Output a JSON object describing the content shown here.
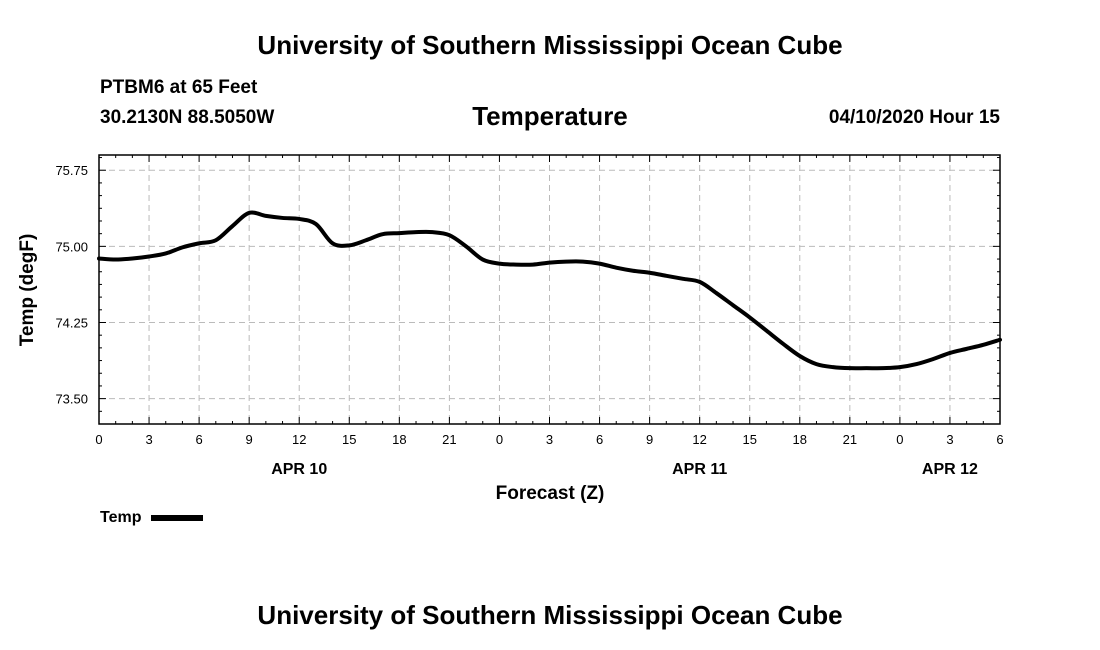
{
  "header": {
    "title_top": "University of Southern Mississippi Ocean Cube",
    "title_bottom": "University of Southern Mississippi Ocean Cube",
    "station": "PTBM6 at 65 Feet",
    "coords": "30.2130N 88.5050W",
    "datetime": "04/10/2020 Hour 15"
  },
  "legend": {
    "label": "Temp"
  },
  "colors": {
    "line": "#000000",
    "grid": "#bbbbbb",
    "background": "#ffffff"
  },
  "chart_data": {
    "type": "line",
    "title": "Temperature",
    "xlabel": "Forecast (Z)",
    "ylabel": "Temp (degF)",
    "ylim": [
      73.25,
      75.9
    ],
    "xlim": [
      0,
      54
    ],
    "yticks": [
      73.5,
      74.25,
      75.0,
      75.75
    ],
    "ytick_labels": [
      "73.50",
      "74.25",
      "75.00",
      "75.75"
    ],
    "xticks": [
      0,
      3,
      6,
      9,
      12,
      15,
      18,
      21,
      24,
      27,
      30,
      33,
      36,
      39,
      42,
      45,
      48,
      51,
      54
    ],
    "xtick_labels": [
      "0",
      "3",
      "6",
      "9",
      "12",
      "15",
      "18",
      "21",
      "0",
      "3",
      "6",
      "9",
      "12",
      "15",
      "18",
      "21",
      "0",
      "3",
      "6"
    ],
    "date_labels": [
      {
        "x": 12,
        "label": "APR 10"
      },
      {
        "x": 36,
        "label": "APR 11"
      },
      {
        "x": 51,
        "label": "APR 12"
      }
    ],
    "grid": true,
    "legend_position": "bottom-left",
    "series": [
      {
        "name": "Temp",
        "x": [
          0,
          1,
          2,
          3,
          4,
          5,
          6,
          7,
          8,
          9,
          10,
          11,
          12,
          13,
          14,
          15,
          16,
          17,
          18,
          19,
          20,
          21,
          22,
          23,
          24,
          25,
          26,
          27,
          28,
          29,
          30,
          31,
          32,
          33,
          34,
          35,
          36,
          37,
          38,
          39,
          40,
          41,
          42,
          43,
          44,
          45,
          46,
          47,
          48,
          49,
          50,
          51,
          52,
          53,
          54
        ],
        "values": [
          74.88,
          74.87,
          74.88,
          74.9,
          74.93,
          74.99,
          75.03,
          75.06,
          75.2,
          75.33,
          75.3,
          75.28,
          75.27,
          75.22,
          75.03,
          75.01,
          75.06,
          75.12,
          75.13,
          75.14,
          75.14,
          75.11,
          75.0,
          74.87,
          74.83,
          74.82,
          74.82,
          74.84,
          74.85,
          74.85,
          74.83,
          74.79,
          74.76,
          74.74,
          74.71,
          74.68,
          74.65,
          74.54,
          74.42,
          74.3,
          74.17,
          74.04,
          73.92,
          73.84,
          73.81,
          73.8,
          73.8,
          73.8,
          73.81,
          73.84,
          73.89,
          73.95,
          73.99,
          74.03,
          74.08
        ]
      }
    ]
  }
}
